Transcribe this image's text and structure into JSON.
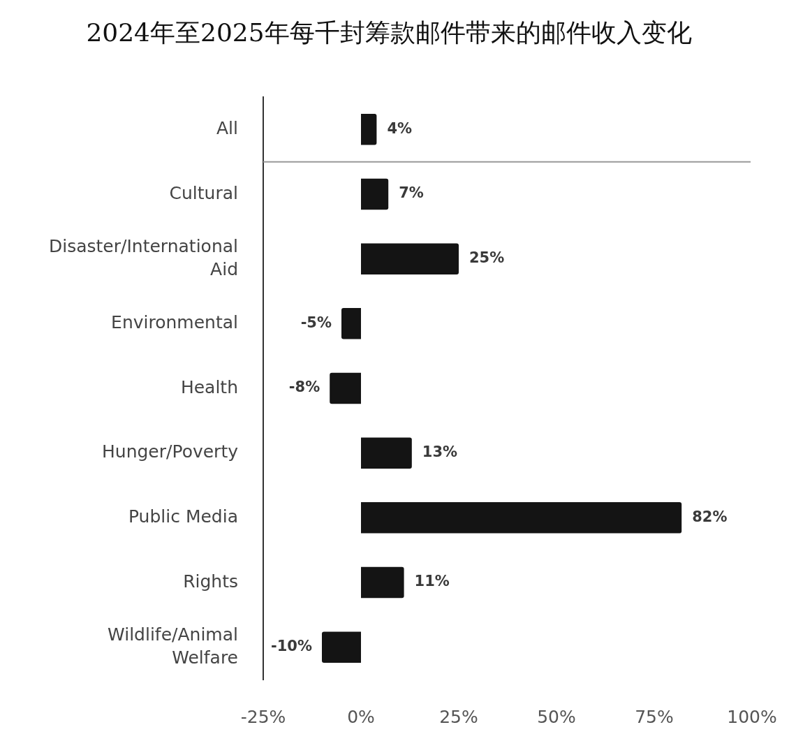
{
  "chart_data": {
    "type": "bar",
    "orientation": "horizontal",
    "title": "2024年至2025年每千封筹款邮件带来的邮件收入变化",
    "categories": [
      "All",
      "Cultural",
      "Disaster/International Aid",
      "Environmental",
      "Health",
      "Hunger/Poverty",
      "Public Media",
      "Rights",
      "Wildlife/Animal Welfare"
    ],
    "values": [
      4,
      7,
      25,
      -5,
      -8,
      13,
      82,
      11,
      -10
    ],
    "color": "#141414",
    "value_labels": [
      "4%",
      "7%",
      "25%",
      "-5%",
      "-8%",
      "13%",
      "82%",
      "11%",
      "-10%"
    ],
    "xlim": [
      -25,
      100
    ],
    "xticks": [
      {
        "value": -25,
        "label": "-25%"
      },
      {
        "value": 0,
        "label": "0%"
      },
      {
        "value": 25,
        "label": "25%"
      },
      {
        "value": 50,
        "label": "50%"
      },
      {
        "value": 75,
        "label": "75%"
      },
      {
        "value": 100,
        "label": "100%"
      }
    ],
    "grid": false
  }
}
